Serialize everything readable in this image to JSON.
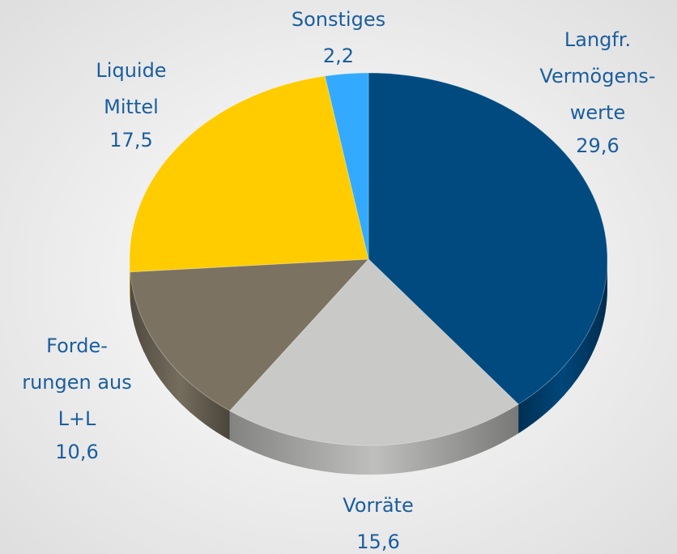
{
  "chart_data": {
    "type": "pie",
    "categories": [
      [
        "Langfr.",
        "Vermögens-",
        "werte"
      ],
      [
        "Vorräte"
      ],
      [
        "Forde-",
        "rungen aus",
        "L+L"
      ],
      [
        "Liquide",
        "Mittel"
      ],
      [
        "Sonstiges"
      ]
    ],
    "values": [
      29.6,
      15.6,
      10.6,
      17.5,
      2.2
    ],
    "value_labels": [
      "29,6",
      "15,6",
      "10,6",
      "17,5",
      "2,2"
    ],
    "colors": [
      "#004a80",
      "#c9c9c7",
      "#7b7262",
      "#ffcc00",
      "#33aaff"
    ]
  }
}
